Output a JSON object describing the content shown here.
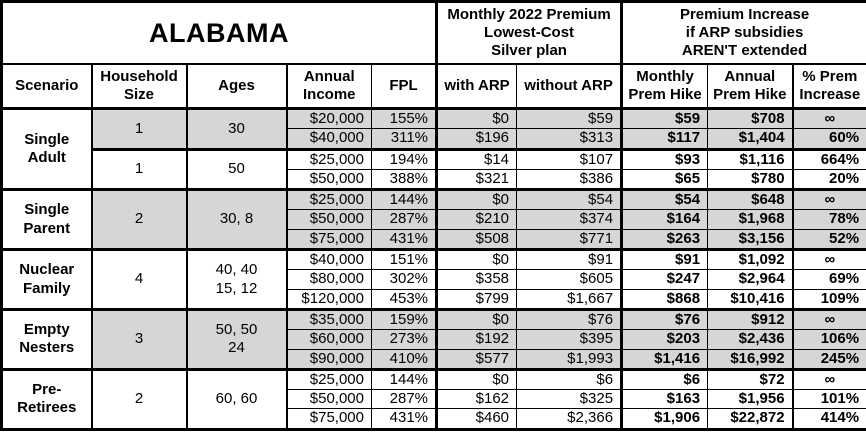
{
  "table": {
    "title": "ALABAMA",
    "span_headers": {
      "premium": "Monthly 2022 Premium\nLowest-Cost\nSilver plan",
      "increase": "Premium Increase\nif ARP subsidies\nAREN'T extended"
    },
    "columns": [
      {
        "key": "scenario",
        "label": "Scenario"
      },
      {
        "key": "household",
        "label": "Household\nSize"
      },
      {
        "key": "ages",
        "label": "Ages"
      },
      {
        "key": "income",
        "label": "Annual\nIncome"
      },
      {
        "key": "fpl",
        "label": "FPL"
      },
      {
        "key": "witharp",
        "label": "with ARP"
      },
      {
        "key": "withoutarp",
        "label": "without ARP"
      },
      {
        "key": "monthly",
        "label": "Monthly\nPrem Hike"
      },
      {
        "key": "annual",
        "label": "Annual\nPrem Hike"
      },
      {
        "key": "pct",
        "label": "% Prem\nIncrease"
      }
    ],
    "groups": [
      {
        "scenario": "Single\nAdult",
        "subgroups": [
          {
            "household_size": "1",
            "ages": "30",
            "shaded": true,
            "rows": [
              [
                "$20,000",
                "155%",
                "$0",
                "$59",
                "$59",
                "$708",
                "∞"
              ],
              [
                "$40,000",
                "311%",
                "$196",
                "$313",
                "$117",
                "$1,404",
                "60%"
              ]
            ]
          },
          {
            "household_size": "1",
            "ages": "50",
            "shaded": false,
            "rows": [
              [
                "$25,000",
                "194%",
                "$14",
                "$107",
                "$93",
                "$1,116",
                "664%"
              ],
              [
                "$50,000",
                "388%",
                "$321",
                "$386",
                "$65",
                "$780",
                "20%"
              ]
            ]
          }
        ]
      },
      {
        "scenario": "Single\nParent",
        "subgroups": [
          {
            "household_size": "2",
            "ages": "30, 8",
            "shaded": true,
            "rows": [
              [
                "$25,000",
                "144%",
                "$0",
                "$54",
                "$54",
                "$648",
                "∞"
              ],
              [
                "$50,000",
                "287%",
                "$210",
                "$374",
                "$164",
                "$1,968",
                "78%"
              ],
              [
                "$75,000",
                "431%",
                "$508",
                "$771",
                "$263",
                "$3,156",
                "52%"
              ]
            ]
          }
        ]
      },
      {
        "scenario": "Nuclear\nFamily",
        "subgroups": [
          {
            "household_size": "4",
            "ages": "40, 40\n15, 12",
            "shaded": false,
            "rows": [
              [
                "$40,000",
                "151%",
                "$0",
                "$91",
                "$91",
                "$1,092",
                "∞"
              ],
              [
                "$80,000",
                "302%",
                "$358",
                "$605",
                "$247",
                "$2,964",
                "69%"
              ],
              [
                "$120,000",
                "453%",
                "$799",
                "$1,667",
                "$868",
                "$10,416",
                "109%"
              ]
            ]
          }
        ]
      },
      {
        "scenario": "Empty\nNesters",
        "subgroups": [
          {
            "household_size": "3",
            "ages": "50, 50\n24",
            "shaded": true,
            "rows": [
              [
                "$35,000",
                "159%",
                "$0",
                "$76",
                "$76",
                "$912",
                "∞"
              ],
              [
                "$60,000",
                "273%",
                "$192",
                "$395",
                "$203",
                "$2,436",
                "106%"
              ],
              [
                "$90,000",
                "410%",
                "$577",
                "$1,993",
                "$1,416",
                "$16,992",
                "245%"
              ]
            ]
          }
        ]
      },
      {
        "scenario": "Pre-\nRetirees",
        "subgroups": [
          {
            "household_size": "2",
            "ages": "60, 60",
            "shaded": false,
            "rows": [
              [
                "$25,000",
                "144%",
                "$0",
                "$6",
                "$6",
                "$72",
                "∞"
              ],
              [
                "$50,000",
                "287%",
                "$162",
                "$325",
                "$163",
                "$1,956",
                "101%"
              ],
              [
                "$75,000",
                "431%",
                "$460",
                "$2,366",
                "$1,906",
                "$22,872",
                "414%"
              ]
            ]
          }
        ]
      }
    ]
  },
  "colors": {
    "shade": "#d6d6d6",
    "border": "#000000",
    "background": "#ffffff",
    "text": "#000000"
  }
}
